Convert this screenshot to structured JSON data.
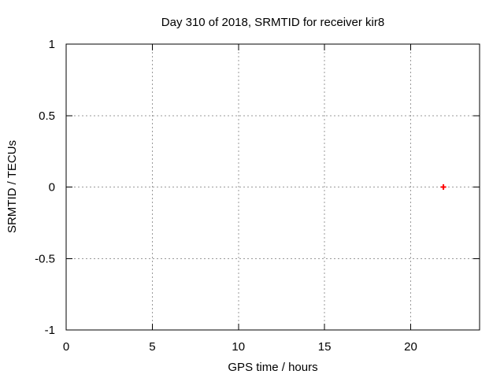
{
  "window": {
    "background": "#ffffff"
  },
  "chart_data": {
    "type": "scatter",
    "title": "Day 310 of 2018, SRMTID for receiver kir8",
    "xlabel": "GPS time / hours",
    "ylabel": "SRMTID / TECUs",
    "xlim": [
      0,
      24
    ],
    "ylim": [
      -1,
      1
    ],
    "xticks": [
      0,
      5,
      10,
      15,
      20
    ],
    "yticks": [
      -1,
      -0.5,
      0,
      0.5,
      1
    ],
    "grid": true,
    "grid_style": "dotted",
    "legend": "none",
    "series": [
      {
        "name": "SRMTID",
        "marker": "plus",
        "color": "#ff0000",
        "points": [
          {
            "x": 21.9,
            "y": 0
          }
        ]
      }
    ],
    "colors": {
      "border": "#000000",
      "grid": "#9a9a9a",
      "text": "#000000",
      "background": "#ffffff"
    }
  }
}
